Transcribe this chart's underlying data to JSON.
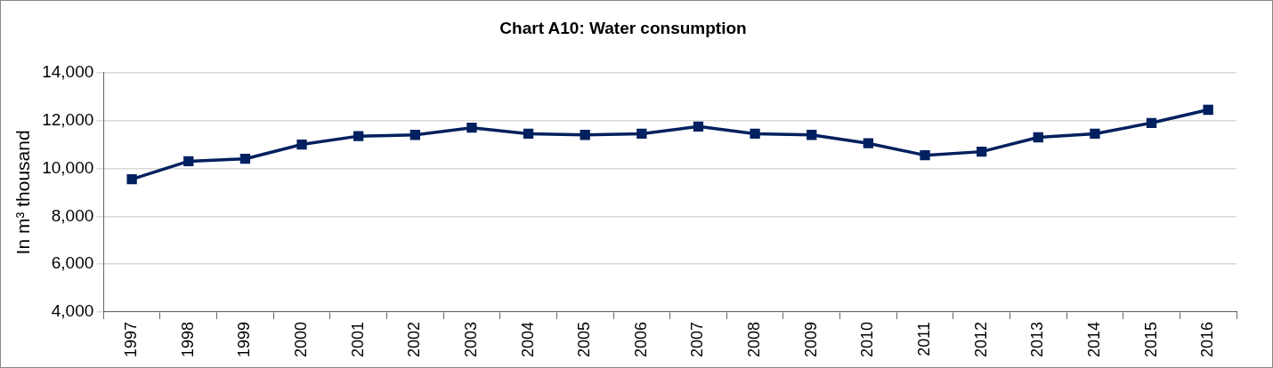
{
  "chart_data": {
    "type": "line",
    "title": "Chart A10: Water consumption",
    "ylabel": "In m³ thousand",
    "categories": [
      "1997",
      "1998",
      "1999",
      "2000",
      "2001",
      "2002",
      "2003",
      "2004",
      "2005",
      "2006",
      "2007",
      "2008",
      "2009",
      "2010",
      "2011",
      "2012",
      "2013",
      "2014",
      "2015",
      "2016"
    ],
    "series": [
      {
        "color": "#00205f",
        "values": [
          9550,
          10300,
          10400,
          11000,
          11350,
          11400,
          11700,
          11450,
          11400,
          11450,
          11750,
          11450,
          11400,
          11050,
          10550,
          10700,
          11300,
          11450,
          11900,
          12450
        ]
      }
    ],
    "ylim": [
      4000,
      14000
    ],
    "yticks": [
      {
        "value": 4000,
        "label": "4,000"
      },
      {
        "value": 6000,
        "label": "6,000"
      },
      {
        "value": 8000,
        "label": "8,000"
      },
      {
        "value": 10000,
        "label": "10,000"
      },
      {
        "value": 12000,
        "label": "12,000"
      },
      {
        "value": 14000,
        "label": "14,000"
      }
    ],
    "grid": "y",
    "legend": false,
    "marker": "square",
    "line_style": "solid"
  }
}
